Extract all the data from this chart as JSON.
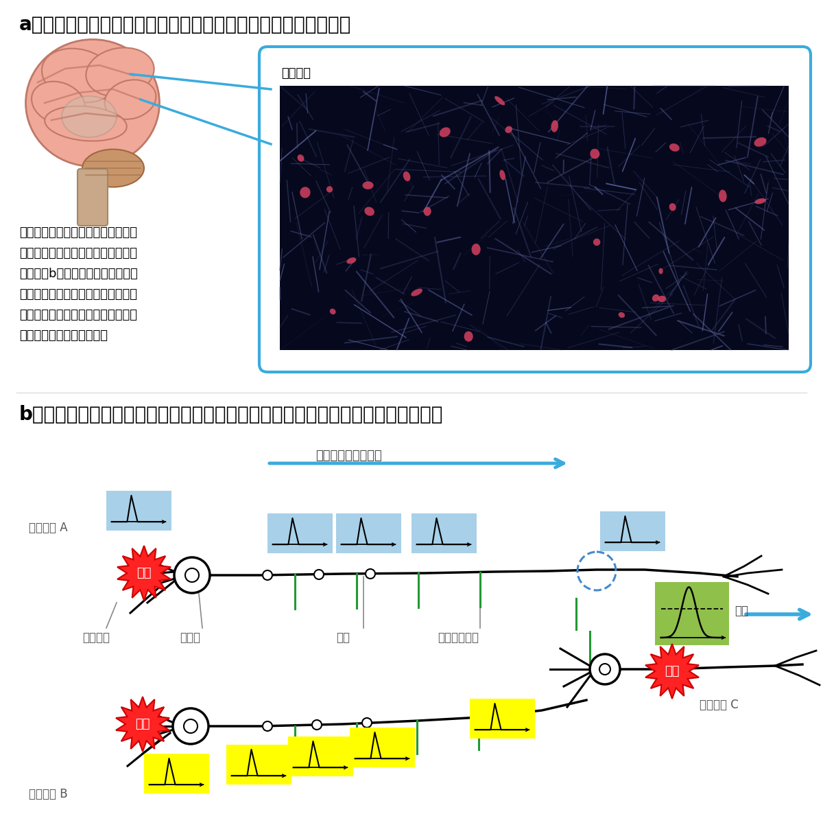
{
  "title_a": "a　脳の中では、神絏細胞が複雑なネットワークをつくっている",
  "title_b": "b　１つ１つの神絏細胞は、発火という電気的な現象を利用して信号を伝えている",
  "label_image": "イメージ",
  "label_arrow": "発火が伝わっていく",
  "label_neuron_a": "神絏細胞 A",
  "label_neuron_b": "神絏細胞 B",
  "label_neuron_c": "神絏細胞 C",
  "label_dendrite": "樹状突起",
  "label_soma": "細胞体",
  "label_axon": "軸索",
  "label_synapse": "シナプス結合",
  "label_firing": "発火",
  "label_threshold": "閾値",
  "text_lines": [
    "神絏細胞には、信号の「出口」であ",
    "る軸索と、「入口」である樹状突起",
    "がある（b参照）。脳内では、多数",
    "の神絏細胞の軸索と樹状突起が互い",
    "に結合をつくることで複雑なネット",
    "ワークが形成されている。"
  ],
  "blue_color": "#3aabdd",
  "yellow_color": "#ffff00",
  "blue_box_color": "#a8d0e8",
  "green_box_color": "#8fc04a",
  "bg_color": "#ffffff"
}
